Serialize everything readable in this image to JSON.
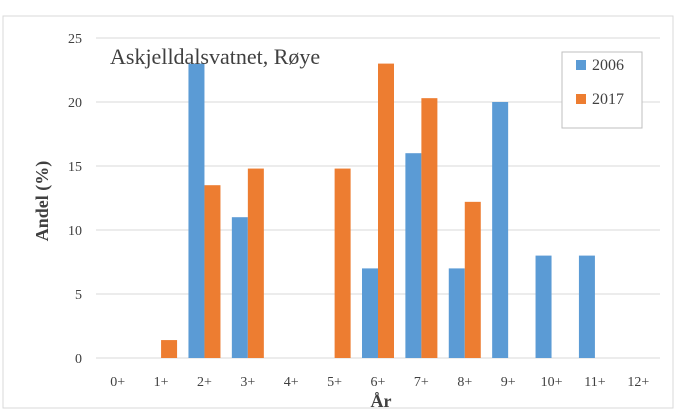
{
  "chart_data": {
    "type": "bar",
    "title": "Askjelldalsvatnet,  Røye",
    "xlabel": "År",
    "ylabel": "Andel (%)",
    "categories": [
      "0+",
      "1+",
      "2+",
      "3+",
      "4+",
      "5+",
      "6+",
      "7+",
      "8+",
      "9+",
      "10+",
      "11+",
      "12+"
    ],
    "ylim": [
      0,
      25
    ],
    "yticks": [
      0,
      5,
      10,
      15,
      20,
      25
    ],
    "grid": true,
    "legend_position": "top-right",
    "series": [
      {
        "name": "2006",
        "color": "#5b9bd5",
        "values": [
          0,
          0,
          23,
          11,
          0,
          0,
          7,
          16,
          7,
          20,
          8,
          8,
          0
        ]
      },
      {
        "name": "2017",
        "color": "#ed7d31",
        "values": [
          0,
          1.4,
          13.5,
          14.8,
          0,
          14.8,
          23,
          20.3,
          12.2,
          0,
          0,
          0,
          0
        ]
      }
    ]
  }
}
